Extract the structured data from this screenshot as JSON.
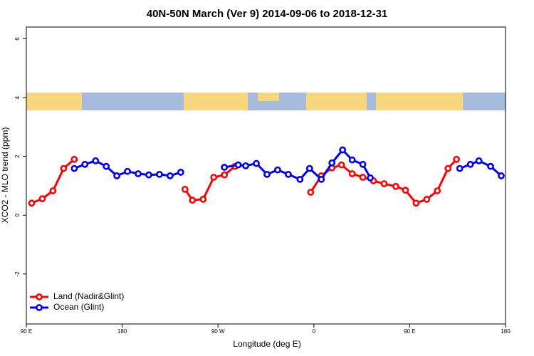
{
  "chart_data": {
    "type": "line",
    "title": "40N-50N March (Ver 9)   2014-09-06 to 2018-12-31",
    "xlabel": "Longitude (deg E)",
    "ylabel": "XCO2 - MLO trend (ppm)",
    "xlim": [
      90,
      540
    ],
    "xticks": [
      {
        "value": 90,
        "label": "90 E"
      },
      {
        "value": 180,
        "label": "180"
      },
      {
        "value": 270,
        "label": "90 W"
      },
      {
        "value": 360,
        "label": "0"
      },
      {
        "value": 450,
        "label": "90 E"
      },
      {
        "value": 540,
        "label": "180"
      }
    ],
    "ylim": [
      -3.7,
      6.4
    ],
    "yticks": [
      -2,
      0,
      2,
      4,
      6
    ],
    "legend": "bottom-left",
    "series": [
      {
        "name": "Land (Nadir&Glint)",
        "color": "#ff0000",
        "x": [
          95,
          105,
          115,
          125,
          135,
          null,
          239,
          246,
          256,
          266,
          276,
          286,
          null,
          357,
          367,
          377,
          386,
          396,
          406,
          416,
          426,
          437,
          446,
          456,
          466,
          476,
          486,
          494
        ],
        "values": [
          0.41,
          0.56,
          0.83,
          1.59,
          1.9,
          null,
          0.88,
          0.51,
          0.54,
          1.29,
          1.37,
          1.66,
          null,
          0.78,
          1.34,
          1.61,
          1.71,
          1.41,
          1.29,
          1.17,
          1.07,
          0.98,
          0.85,
          0.41,
          0.54,
          0.83,
          1.59,
          1.9
        ]
      },
      {
        "name": "Ocean (Glint)",
        "color": "#0000ee",
        "x": [
          135,
          145,
          155,
          165,
          175,
          185,
          195,
          205,
          215,
          225,
          235,
          null,
          276,
          289,
          296,
          306,
          316,
          326,
          336,
          347,
          356,
          367,
          377,
          387,
          396,
          406,
          413,
          null,
          497,
          507,
          515,
          526,
          536
        ],
        "values": [
          1.59,
          1.73,
          1.85,
          1.66,
          1.34,
          1.49,
          1.41,
          1.37,
          1.39,
          1.34,
          1.46,
          null,
          1.63,
          1.71,
          1.68,
          1.76,
          1.39,
          1.54,
          1.39,
          1.22,
          1.59,
          1.22,
          1.78,
          2.22,
          1.88,
          1.73,
          1.27,
          null,
          1.59,
          1.73,
          1.85,
          1.66,
          1.34
        ]
      }
    ]
  }
}
